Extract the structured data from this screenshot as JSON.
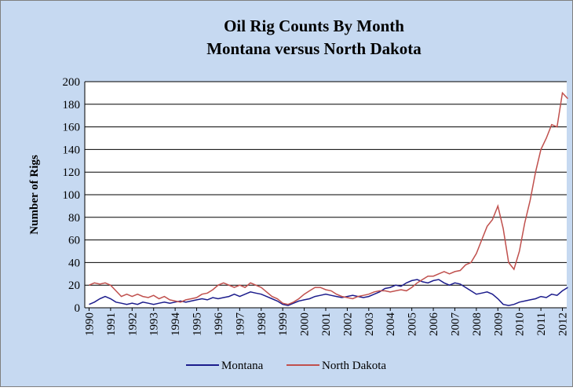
{
  "chart_data": {
    "type": "line",
    "title": [
      "Oil Rig Counts By Month",
      "Montana versus North Dakota"
    ],
    "ylabel": "Number of Rigs",
    "xlim": [
      1989.8,
      2012.2
    ],
    "xticks": [
      1990,
      1991,
      1992,
      1993,
      1994,
      1995,
      1996,
      1997,
      1998,
      1999,
      2000,
      2001,
      2002,
      2003,
      2004,
      2005,
      2006,
      2007,
      2008,
      2009,
      2010,
      2011,
      2012
    ],
    "ylim": [
      0,
      200
    ],
    "yticks": [
      0,
      20,
      40,
      60,
      80,
      100,
      120,
      140,
      160,
      180,
      200
    ],
    "grid": true,
    "legend": "bottom",
    "x": [
      1990,
      1990.25,
      1990.5,
      1990.75,
      1991,
      1991.25,
      1991.5,
      1991.75,
      1992,
      1992.25,
      1992.5,
      1992.75,
      1993,
      1993.25,
      1993.5,
      1993.75,
      1994,
      1994.25,
      1994.5,
      1994.75,
      1995,
      1995.25,
      1995.5,
      1995.75,
      1996,
      1996.25,
      1996.5,
      1996.75,
      1997,
      1997.25,
      1997.5,
      1997.75,
      1998,
      1998.25,
      1998.5,
      1998.75,
      1999,
      1999.25,
      1999.5,
      1999.75,
      2000,
      2000.25,
      2000.5,
      2000.75,
      2001,
      2001.25,
      2001.5,
      2001.75,
      2002,
      2002.25,
      2002.5,
      2002.75,
      2003,
      2003.25,
      2003.5,
      2003.75,
      2004,
      2004.25,
      2004.5,
      2004.75,
      2005,
      2005.25,
      2005.5,
      2005.75,
      2006,
      2006.25,
      2006.5,
      2006.75,
      2007,
      2007.25,
      2007.5,
      2007.75,
      2008,
      2008.25,
      2008.5,
      2008.75,
      2009,
      2009.25,
      2009.5,
      2009.75,
      2010,
      2010.25,
      2010.5,
      2010.75,
      2011,
      2011.25,
      2011.5,
      2011.75,
      2012,
      2012.25
    ],
    "series": [
      {
        "name": "Montana",
        "color": "#1c1c8c",
        "values": [
          3,
          5,
          8,
          10,
          8,
          5,
          4,
          3,
          4,
          3,
          5,
          4,
          3,
          4,
          5,
          4,
          5,
          6,
          5,
          6,
          7,
          8,
          7,
          9,
          8,
          9,
          10,
          12,
          10,
          12,
          14,
          13,
          12,
          10,
          8,
          6,
          3,
          2,
          4,
          6,
          7,
          8,
          10,
          11,
          12,
          11,
          10,
          9,
          10,
          11,
          10,
          9,
          10,
          12,
          14,
          17,
          18,
          20,
          19,
          22,
          24,
          25,
          23,
          22,
          24,
          25,
          22,
          20,
          22,
          21,
          18,
          15,
          12,
          13,
          14,
          12,
          8,
          3,
          2,
          3,
          5,
          6,
          7,
          8,
          10,
          9,
          12,
          11,
          15,
          18
        ]
      },
      {
        "name": "North Dakota",
        "color": "#c0504d",
        "values": [
          20,
          22,
          21,
          22,
          20,
          15,
          10,
          12,
          10,
          12,
          10,
          9,
          11,
          8,
          10,
          7,
          6,
          5,
          7,
          8,
          9,
          12,
          13,
          16,
          20,
          22,
          20,
          18,
          20,
          18,
          22,
          20,
          18,
          14,
          10,
          8,
          4,
          3,
          5,
          8,
          12,
          15,
          18,
          18,
          16,
          15,
          12,
          10,
          9,
          8,
          10,
          11,
          12,
          14,
          15,
          15,
          14,
          15,
          16,
          15,
          18,
          22,
          25,
          28,
          28,
          30,
          32,
          30,
          32,
          33,
          38,
          40,
          48,
          60,
          72,
          78,
          90,
          70,
          40,
          34,
          50,
          75,
          95,
          120,
          140,
          150,
          162,
          160,
          190,
          185
        ]
      }
    ]
  }
}
